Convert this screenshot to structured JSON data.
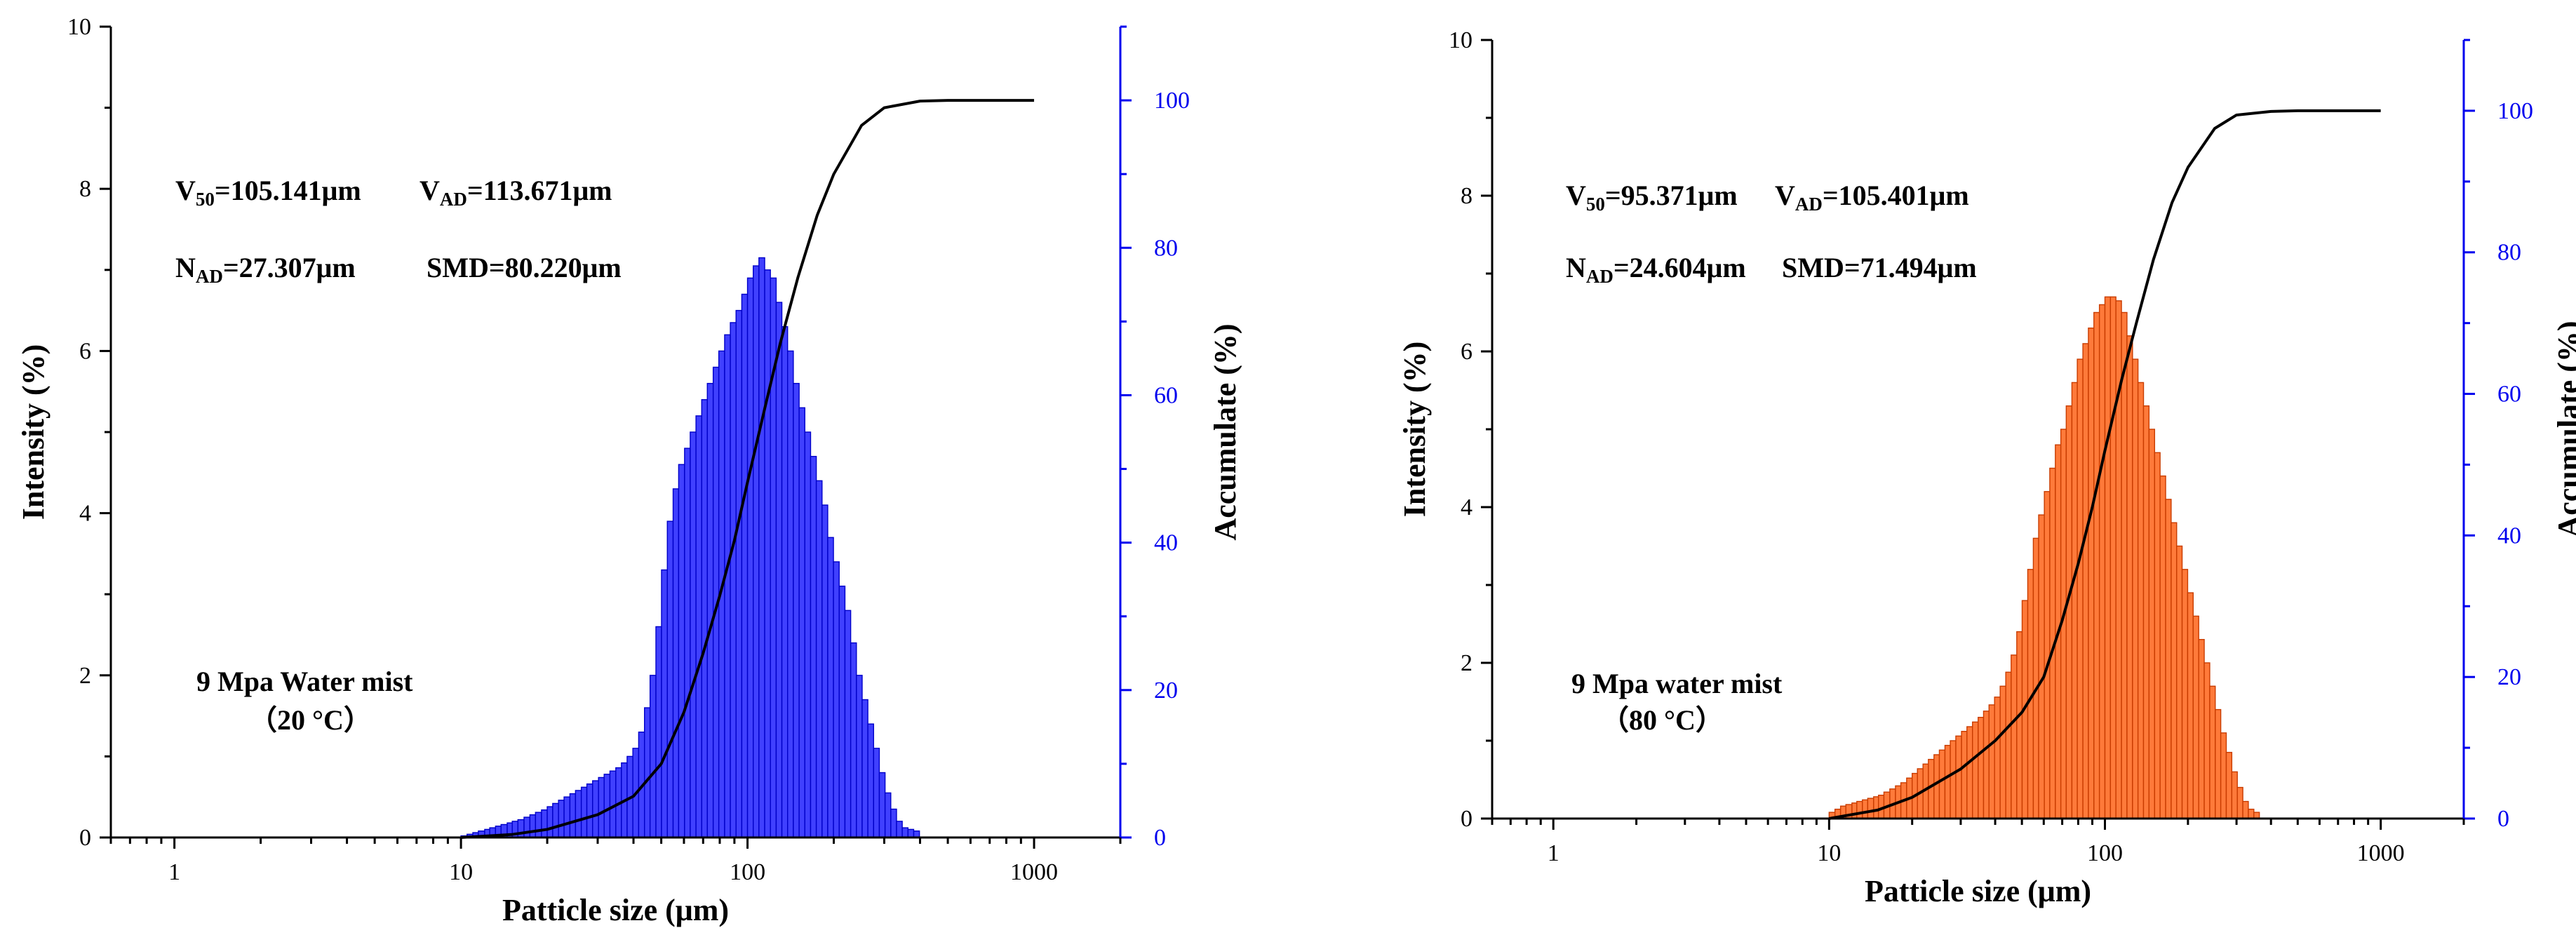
{
  "chart_data": [
    {
      "type": "bar",
      "series_color": "#4040ff",
      "bar_stroke": "#0000c8",
      "curve_color": "#000000",
      "right_axis_color": "#0000ee",
      "xlabel": "Patticle size (μm)",
      "ylabel": "Intensity (%)",
      "y2label": "Accumulate (%)",
      "xlim": [
        0.6,
        2000
      ],
      "xscale": "log",
      "xticks": [
        "1",
        "10",
        "100",
        "1000"
      ],
      "ylim": [
        0,
        10
      ],
      "yticks": [
        "0",
        "2",
        "4",
        "6",
        "8",
        "10"
      ],
      "y2lim": [
        0,
        110
      ],
      "y2ticks": [
        "0",
        "20",
        "40",
        "60",
        "80",
        "100"
      ],
      "annotations": {
        "v50_main": "V",
        "v50_sub": "50",
        "v50_val": "=105.141μm",
        "vad_main": "V",
        "vad_sub": "AD",
        "vad_val": "=113.671μm",
        "nad_main": "N",
        "nad_sub": "AD",
        "nad_val": "=27.307μm",
        "smd": "SMD=80.220μm",
        "condition_line1": "9 Mpa Water mist",
        "condition_line2": "（20 °C）"
      },
      "bins_x": [
        10.0,
        10.5,
        11.0,
        11.5,
        12.1,
        12.6,
        13.2,
        13.8,
        14.5,
        15.1,
        15.8,
        16.6,
        17.4,
        18.2,
        19.1,
        20.0,
        20.9,
        21.9,
        22.9,
        24.0,
        25.1,
        26.3,
        27.5,
        28.8,
        30.2,
        31.6,
        33.1,
        34.7,
        36.3,
        38.0,
        39.8,
        41.7,
        43.7,
        45.7,
        47.9,
        50.1,
        52.5,
        55.0,
        57.5,
        60.3,
        63.1,
        66.1,
        69.2,
        72.4,
        75.9,
        79.4,
        83.2,
        87.1,
        91.2,
        95.5,
        100.0,
        104.7,
        109.6,
        114.8,
        120.2,
        125.9,
        131.8,
        138.0,
        144.5,
        151.4,
        158.5,
        166.0,
        173.8,
        182.0,
        190.5,
        199.5,
        208.9,
        218.8,
        229.1,
        239.9,
        251.2,
        263.0,
        275.4,
        288.4,
        302.0,
        316.2,
        331.1,
        346.7,
        363.1,
        380.2
      ],
      "values": [
        0.02,
        0.04,
        0.06,
        0.08,
        0.1,
        0.12,
        0.14,
        0.16,
        0.18,
        0.2,
        0.22,
        0.25,
        0.28,
        0.31,
        0.34,
        0.38,
        0.42,
        0.46,
        0.5,
        0.54,
        0.58,
        0.62,
        0.66,
        0.7,
        0.74,
        0.78,
        0.82,
        0.86,
        0.92,
        1.0,
        1.1,
        1.3,
        1.6,
        2.0,
        2.6,
        3.3,
        3.9,
        4.3,
        4.6,
        4.8,
        5.0,
        5.2,
        5.4,
        5.6,
        5.8,
        6.0,
        6.2,
        6.35,
        6.5,
        6.7,
        6.9,
        7.05,
        7.15,
        7.0,
        6.9,
        6.6,
        6.3,
        6.0,
        5.6,
        5.3,
        5.0,
        4.7,
        4.4,
        4.1,
        3.7,
        3.4,
        3.1,
        2.8,
        2.4,
        2.0,
        1.7,
        1.4,
        1.1,
        0.8,
        0.55,
        0.35,
        0.2,
        0.12,
        0.1,
        0.08
      ],
      "curve_x": [
        10,
        15,
        20,
        30,
        40,
        50,
        60,
        70,
        80,
        90,
        100,
        115,
        130,
        150,
        175,
        200,
        250,
        300,
        400,
        500,
        700,
        1000
      ],
      "curve_y": [
        0,
        0.4,
        1.1,
        3.1,
        5.6,
        10.0,
        17.0,
        25.0,
        32.8,
        40.3,
        48.2,
        58.3,
        67.0,
        76.0,
        84.4,
        90.0,
        96.6,
        99.0,
        99.9,
        100,
        100,
        100
      ]
    },
    {
      "type": "bar",
      "series_color": "#ff7a3a",
      "bar_stroke": "#c83c00",
      "curve_color": "#000000",
      "right_axis_color": "#0000ee",
      "xlabel": "Patticle size (μm)",
      "ylabel": "Intensity (%)",
      "y2label": "Accumulate (%)",
      "xlim": [
        0.6,
        2000
      ],
      "xscale": "log",
      "xticks": [
        "1",
        "10",
        "100",
        "1000"
      ],
      "ylim": [
        0,
        10
      ],
      "yticks": [
        "0",
        "2",
        "4",
        "6",
        "8",
        "10"
      ],
      "y2lim": [
        0,
        110
      ],
      "y2ticks": [
        "0",
        "20",
        "40",
        "60",
        "80",
        "100"
      ],
      "annotations": {
        "v50_main": "V",
        "v50_sub": "50",
        "v50_val": "=95.371μm",
        "vad_main": "V",
        "vad_sub": "AD",
        "vad_val": "=105.401μm",
        "nad_main": "N",
        "nad_sub": "AD",
        "nad_val": "=24.604μm",
        "smd": "SMD=71.494μm",
        "condition_line1": "9 Mpa water mist",
        "condition_line2": "（80 °C）"
      },
      "bins_x": [
        10.0,
        10.5,
        11.0,
        11.5,
        12.1,
        12.6,
        13.2,
        13.8,
        14.5,
        15.1,
        15.8,
        16.6,
        17.4,
        18.2,
        19.1,
        20.0,
        20.9,
        21.9,
        22.9,
        24.0,
        25.1,
        26.3,
        27.5,
        28.8,
        30.2,
        31.6,
        33.1,
        34.7,
        36.3,
        38.0,
        39.8,
        41.7,
        43.7,
        45.7,
        47.9,
        50.1,
        52.5,
        55.0,
        57.5,
        60.3,
        63.1,
        66.1,
        69.2,
        72.4,
        75.9,
        79.4,
        83.2,
        87.1,
        91.2,
        95.5,
        100.0,
        104.7,
        109.6,
        114.8,
        120.2,
        125.9,
        131.8,
        138.0,
        144.5,
        151.4,
        158.5,
        166.0,
        173.8,
        182.0,
        190.5,
        199.5,
        208.9,
        218.8,
        229.1,
        239.9,
        251.2,
        263.0,
        275.4,
        288.4,
        302.0,
        316.2,
        331.1,
        346.7
      ],
      "values": [
        0.08,
        0.12,
        0.16,
        0.18,
        0.2,
        0.22,
        0.24,
        0.26,
        0.28,
        0.3,
        0.34,
        0.38,
        0.42,
        0.46,
        0.52,
        0.58,
        0.64,
        0.7,
        0.76,
        0.82,
        0.88,
        0.94,
        1.0,
        1.06,
        1.12,
        1.18,
        1.24,
        1.3,
        1.38,
        1.46,
        1.56,
        1.7,
        1.88,
        2.1,
        2.4,
        2.8,
        3.2,
        3.6,
        3.9,
        4.2,
        4.5,
        4.8,
        5.0,
        5.3,
        5.6,
        5.9,
        6.1,
        6.3,
        6.5,
        6.6,
        6.7,
        6.7,
        6.65,
        6.5,
        6.2,
        5.9,
        5.6,
        5.3,
        5.0,
        4.7,
        4.4,
        4.1,
        3.8,
        3.5,
        3.2,
        2.9,
        2.6,
        2.3,
        2.0,
        1.7,
        1.4,
        1.1,
        0.85,
        0.6,
        0.4,
        0.22,
        0.12,
        0.08
      ],
      "curve_x": [
        10,
        15,
        20,
        30,
        40,
        50,
        60,
        70,
        80,
        90,
        100,
        115,
        130,
        150,
        175,
        200,
        250,
        300,
        400,
        500,
        700,
        1000
      ],
      "curve_y": [
        0,
        1.2,
        3.0,
        7.0,
        11.0,
        15.0,
        20.0,
        28.0,
        36.0,
        44.0,
        52.0,
        62.0,
        70.0,
        79.0,
        87.0,
        92.0,
        97.5,
        99.4,
        99.9,
        100,
        100,
        100
      ]
    }
  ]
}
